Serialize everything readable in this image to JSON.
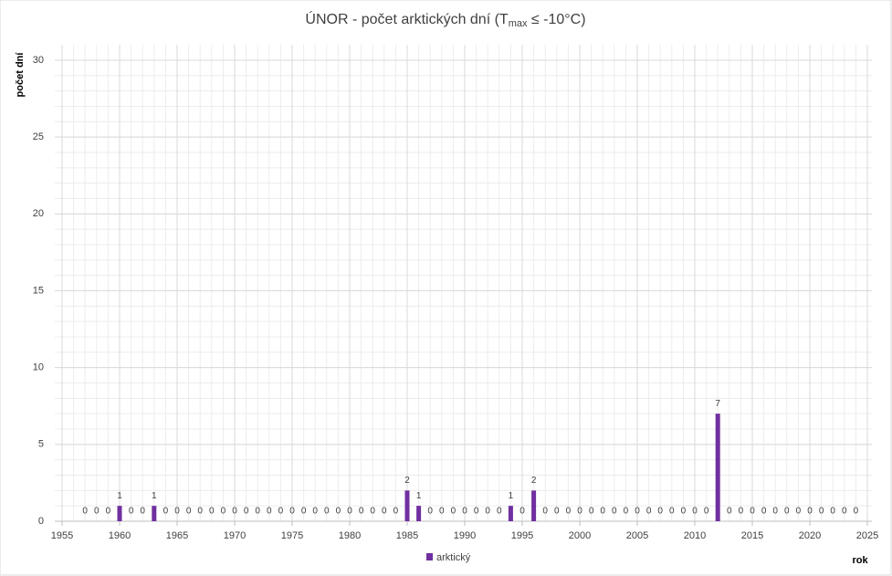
{
  "chart_data": {
    "type": "bar",
    "title": {
      "main": "ÚNOR - počet arktických dní (T",
      "sub": "max",
      "end": " ≤ -10°C)"
    },
    "y_label": "počet dní",
    "x_label": "rok",
    "x": [
      1957,
      1958,
      1959,
      1960,
      1961,
      1962,
      1963,
      1964,
      1965,
      1966,
      1967,
      1968,
      1969,
      1970,
      1971,
      1972,
      1973,
      1974,
      1975,
      1976,
      1977,
      1978,
      1979,
      1980,
      1981,
      1982,
      1983,
      1984,
      1985,
      1986,
      1987,
      1988,
      1989,
      1990,
      1991,
      1992,
      1993,
      1994,
      1995,
      1996,
      1997,
      1998,
      1999,
      2000,
      2001,
      2002,
      2003,
      2004,
      2005,
      2006,
      2007,
      2008,
      2009,
      2010,
      2011,
      2012,
      2013,
      2014,
      2015,
      2016,
      2017,
      2018,
      2019,
      2020,
      2021,
      2022,
      2023,
      2024
    ],
    "series": [
      {
        "name": "arktický",
        "color": "#7030a0",
        "values": [
          0,
          0,
          0,
          1,
          0,
          0,
          1,
          0,
          0,
          0,
          0,
          0,
          0,
          0,
          0,
          0,
          0,
          0,
          0,
          0,
          0,
          0,
          0,
          0,
          0,
          0,
          0,
          0,
          2,
          1,
          0,
          0,
          0,
          0,
          0,
          0,
          0,
          1,
          0,
          2,
          0,
          0,
          0,
          0,
          0,
          0,
          0,
          0,
          0,
          0,
          0,
          0,
          0,
          0,
          0,
          7,
          0,
          0,
          0,
          0,
          0,
          0,
          0,
          0,
          0,
          0,
          0,
          0
        ]
      }
    ],
    "xlim": [
      1955,
      2025
    ],
    "xticks": [
      1955,
      1960,
      1965,
      1970,
      1975,
      1980,
      1985,
      1990,
      1995,
      2000,
      2005,
      2010,
      2015,
      2020,
      2025
    ],
    "ylim": [
      0,
      30
    ],
    "yticks": [
      0,
      5,
      10,
      15,
      20,
      25,
      30
    ],
    "grid": true,
    "minor_grid": true,
    "legend": "bottom"
  }
}
